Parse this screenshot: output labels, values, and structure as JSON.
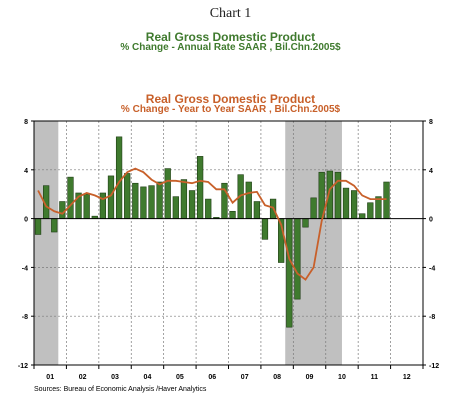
{
  "page_title": "Chart 1",
  "chart_data": {
    "type": "bar+line",
    "titles": [
      {
        "text": "Real Gross Domestic Product",
        "color": "#3f7a2e"
      },
      {
        "text": "% Change - Annual Rate     SAAR , Bil.Chn.2005$",
        "color": "#3f7a2e"
      },
      {
        "text": "Real Gross Domestic Product",
        "color": "#c8602a"
      },
      {
        "text": "% Change - Year to Year     SAAR , Bil.Chn.2005$",
        "color": "#c8602a"
      }
    ],
    "x_labels": [
      "01",
      "02",
      "03",
      "04",
      "05",
      "06",
      "07",
      "08",
      "09",
      "10",
      "11",
      "12"
    ],
    "y_ticks": [
      8,
      4,
      0,
      -4,
      -8,
      -12
    ],
    "ylim": [
      -12,
      8
    ],
    "recession_shading": [
      [
        0.0,
        0.75
      ],
      [
        7.75,
        9.5
      ]
    ],
    "series": [
      {
        "name": "% Change - Annual Rate",
        "type": "bar",
        "color": "#3f7a2e",
        "values": [
          -1.3,
          2.7,
          -1.1,
          1.4,
          3.4,
          2.1,
          2.0,
          0.2,
          2.1,
          3.5,
          6.7,
          3.7,
          2.9,
          2.6,
          2.7,
          3.0,
          4.1,
          1.8,
          3.2,
          2.3,
          5.1,
          1.6,
          0.1,
          2.9,
          0.6,
          3.6,
          3.0,
          1.4,
          -1.7,
          1.6,
          -3.6,
          -8.9,
          -6.6,
          -0.7,
          1.7,
          3.8,
          3.9,
          3.8,
          2.5,
          2.3,
          0.4,
          1.3,
          1.8,
          3.0
        ]
      },
      {
        "name": "% Change - Year to Year",
        "type": "line",
        "color": "#c8602a",
        "values": [
          2.3,
          1.0,
          0.6,
          0.4,
          1.1,
          1.8,
          2.1,
          1.9,
          1.6,
          1.9,
          3.0,
          3.8,
          4.1,
          3.8,
          3.2,
          2.8,
          3.1,
          3.1,
          3.0,
          2.9,
          3.1,
          3.0,
          2.4,
          2.4,
          1.3,
          1.9,
          2.1,
          2.2,
          1.1,
          0.9,
          -0.5,
          -3.3,
          -4.5,
          -5.0,
          -4.0,
          -0.2,
          2.4,
          3.1,
          3.1,
          2.7,
          1.9,
          1.6,
          1.6,
          1.6
        ]
      }
    ],
    "source": "Sources:  Bureau of Economic Analysis /Haver Analytics"
  }
}
